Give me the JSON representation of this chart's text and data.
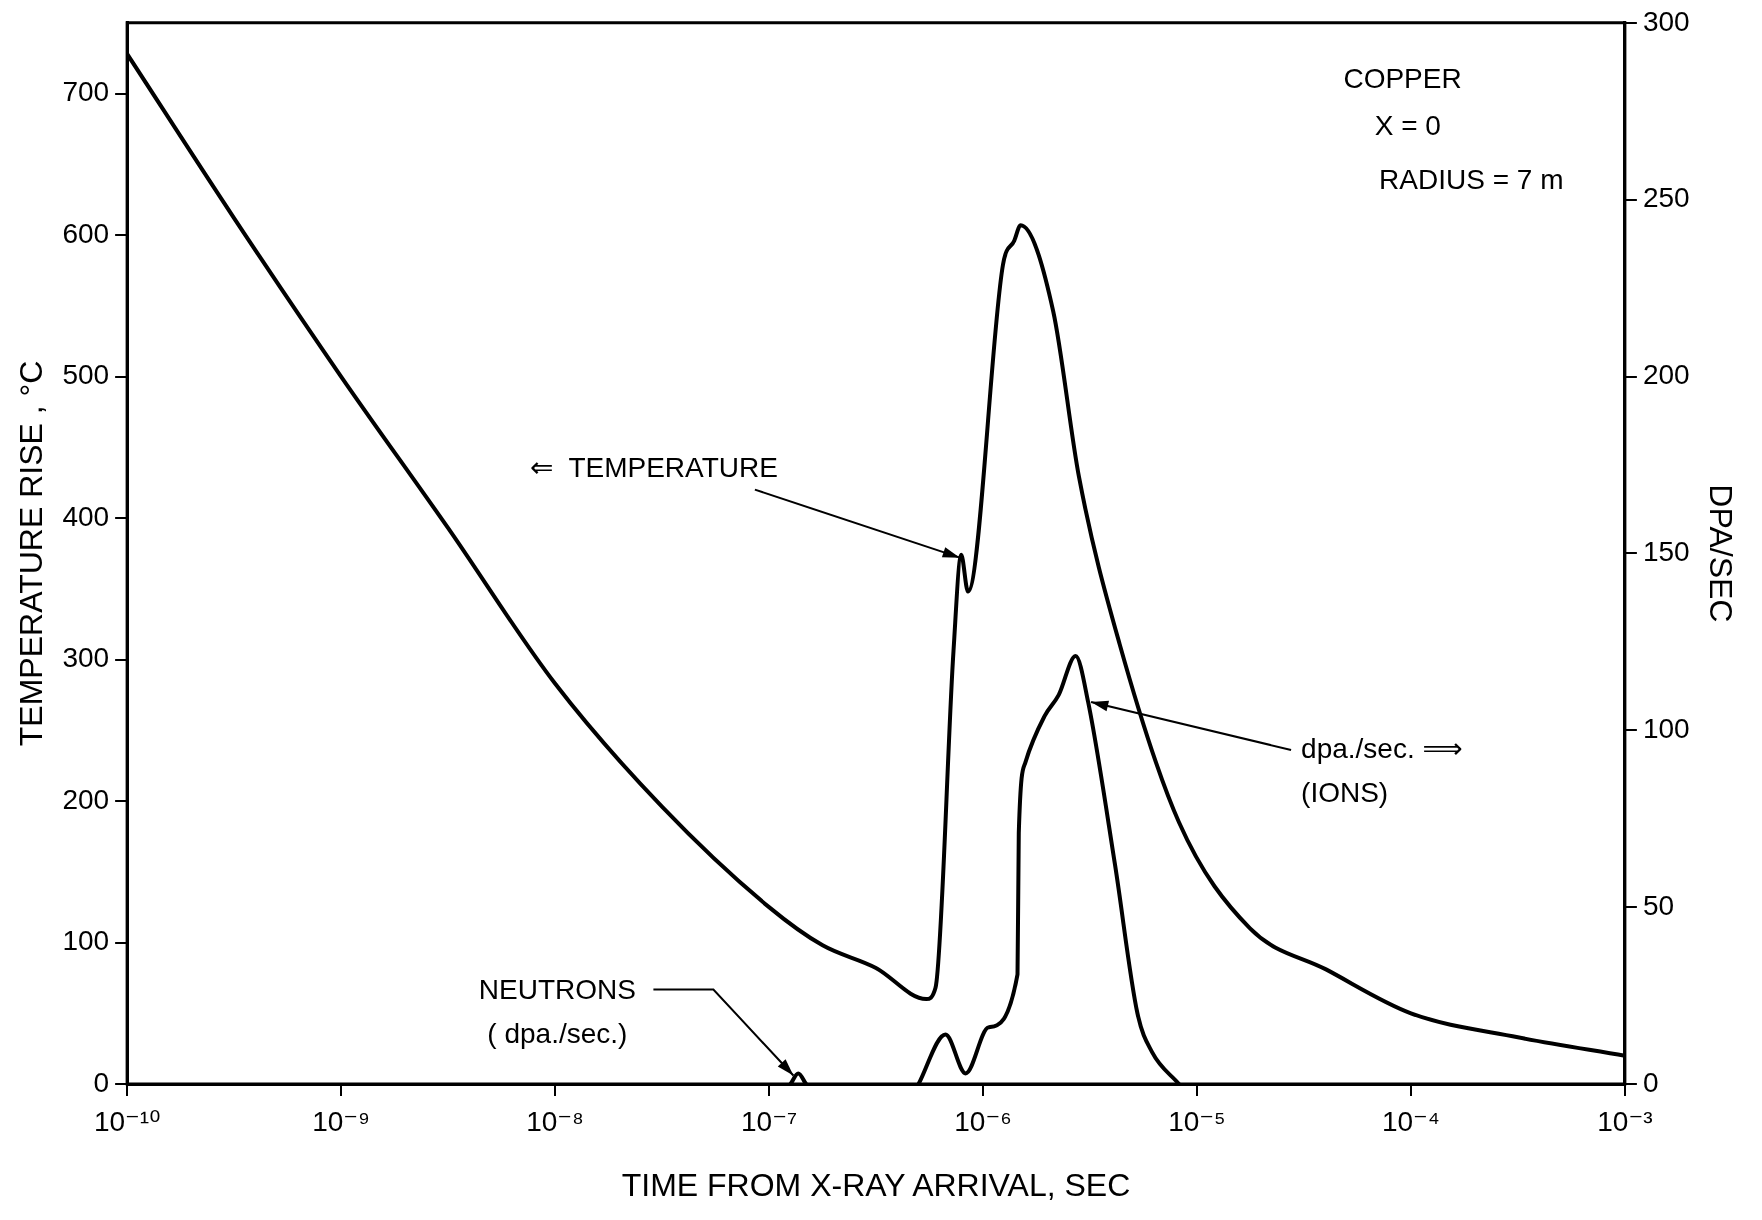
{
  "chart_data": {
    "type": "line",
    "xlabel": "TIME FROM X-RAY ARRIVAL, SEC",
    "ylabel": "TEMPERATURE RISE , °C",
    "y2label": "DPA/SEC",
    "log": "x",
    "grid": false,
    "legend": false,
    "marker": "none",
    "line_style": "solid",
    "xlim": [
      1e-10,
      0.001
    ],
    "xticks": [
      {
        "value": 1e-10,
        "label": "10⁻¹⁰"
      },
      {
        "value": 1e-09,
        "label": "10⁻⁹"
      },
      {
        "value": 1e-08,
        "label": "10⁻⁸"
      },
      {
        "value": 1e-07,
        "label": "10⁻⁷"
      },
      {
        "value": 1e-06,
        "label": "10⁻⁶"
      },
      {
        "value": 1e-05,
        "label": "10⁻⁵"
      },
      {
        "value": 0.0001,
        "label": "10⁻⁴"
      },
      {
        "value": 0.001,
        "label": "10⁻³"
      }
    ],
    "ylim": [
      0,
      750
    ],
    "yticks": [
      0,
      100,
      200,
      300,
      400,
      500,
      600,
      700
    ],
    "y2lim": [
      0,
      300
    ],
    "y2ticks": [
      0,
      50,
      100,
      150,
      200,
      250,
      300
    ],
    "series": [
      {
        "color": "#000000",
        "axis": "y",
        "x": [
          1e-10,
          3.16e-10,
          1e-09,
          3.16e-09,
          1e-08,
          3.16e-08,
          1e-07,
          1.78e-07,
          3.16e-07,
          5.43e-07,
          6e-07,
          7.28e-07,
          7.91e-07,
          8.51e-07,
          1.24e-06,
          1.4e-06,
          1.5e-06,
          2.13e-06,
          2.81e-06,
          4.35e-06,
          8.24e-06,
          1.77e-05,
          4.01e-05,
          0.0001,
          0.000316,
          0.001
        ],
        "values": [
          728,
          612,
          500,
          393,
          283,
          196,
          125,
          98,
          82,
          60,
          68,
          306,
          374,
          348,
          579,
          596,
          607,
          546,
          429,
          311,
          185,
          110,
          81,
          50,
          33,
          20
        ]
      },
      {
        "color": "#000000",
        "axis": "y2",
        "x": [
          5e-07,
          6.68e-07,
          8.3e-07,
          1.06e-06,
          1.45e-06,
          1.47e-06,
          1.58e-06,
          1.94e-06,
          2.26e-06,
          2.71e-06,
          3.1e-06,
          4.14e-06,
          5.27e-06,
          6.17e-06,
          8.24e-06
        ],
        "values": [
          0,
          14,
          3,
          16,
          31,
          71,
          91,
          104,
          110,
          121,
          108,
          62,
          20,
          9,
          0
        ]
      },
      {
        "color": "#000000",
        "axis": "y2",
        "x": [
          1.26e-07,
          1.37e-07,
          1.49e-07
        ],
        "values": [
          0,
          3,
          0
        ]
      }
    ],
    "annotations": [
      {
        "text": "⇐  TEMPERATURE",
        "x": 7.8e-07,
        "y": 372
      },
      {
        "text": "dpa./sec. ⟹\n(IONS)",
        "x": 3.2e-06,
        "y": 270
      },
      {
        "text": "NEUTRONS\n( dpa./sec.)",
        "x": 1.3e-07,
        "y": 6
      },
      "COPPER",
      "X = 0",
      "RADIUS = 7 m"
    ]
  }
}
